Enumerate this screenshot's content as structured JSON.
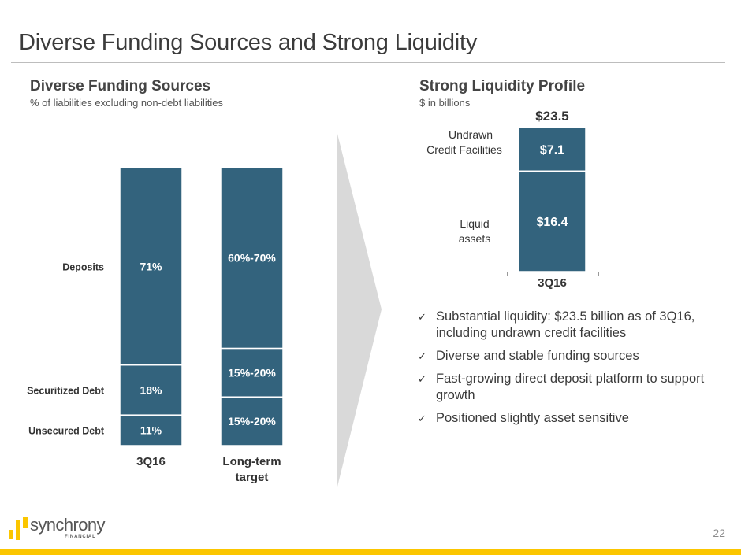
{
  "slide": {
    "title": "Diverse Funding Sources and Strong Liquidity",
    "page_number": "22",
    "brand": {
      "name": "synchrony",
      "sub": "FINANCIAL",
      "accent": "#fbc600"
    }
  },
  "left_panel": {
    "title": "Diverse Funding Sources",
    "subtitle": "% of liabilities excluding non-debt liabilities"
  },
  "right_panel": {
    "title": "Strong Liquidity Profile",
    "subtitle": "$ in billions"
  },
  "bullets": [
    "Substantial liquidity: $23.5 billion as of 3Q16, including undrawn credit facilities",
    "Diverse and stable funding sources",
    "Fast-growing direct deposit platform to support growth",
    "Positioned slightly asset sensitive"
  ],
  "colors": {
    "bar": "#33637d",
    "text": "#333333",
    "arrow": "#d9d9d9"
  },
  "chart_data": [
    {
      "type": "bar",
      "stacked": true,
      "title": "Diverse Funding Sources",
      "subtitle": "% of liabilities excluding non-debt liabilities",
      "categories": [
        "3Q16",
        "Long-term target"
      ],
      "series": [
        {
          "name": "Unsecured Debt",
          "values": [
            11,
            17.5
          ],
          "labels": [
            "11%",
            "15%-20%"
          ]
        },
        {
          "name": "Securitized Debt",
          "values": [
            18,
            17.5
          ],
          "labels": [
            "18%",
            "15%-20%"
          ]
        },
        {
          "name": "Deposits",
          "values": [
            71,
            65
          ],
          "labels": [
            "71%",
            "60%-70%"
          ]
        }
      ],
      "ylim": [
        0,
        100
      ],
      "grid": false,
      "legend": "left"
    },
    {
      "type": "bar",
      "stacked": true,
      "title": "Strong Liquidity Profile",
      "subtitle": "$ in billions",
      "categories": [
        "3Q16"
      ],
      "series": [
        {
          "name": "Liquid assets",
          "values": [
            16.4
          ],
          "labels": [
            "$16.4"
          ]
        },
        {
          "name": "Undrawn Credit Facilities",
          "values": [
            7.1
          ],
          "labels": [
            "$7.1"
          ]
        }
      ],
      "total_label": "$23.5",
      "total": 23.5,
      "grid": false,
      "legend": "left"
    }
  ]
}
